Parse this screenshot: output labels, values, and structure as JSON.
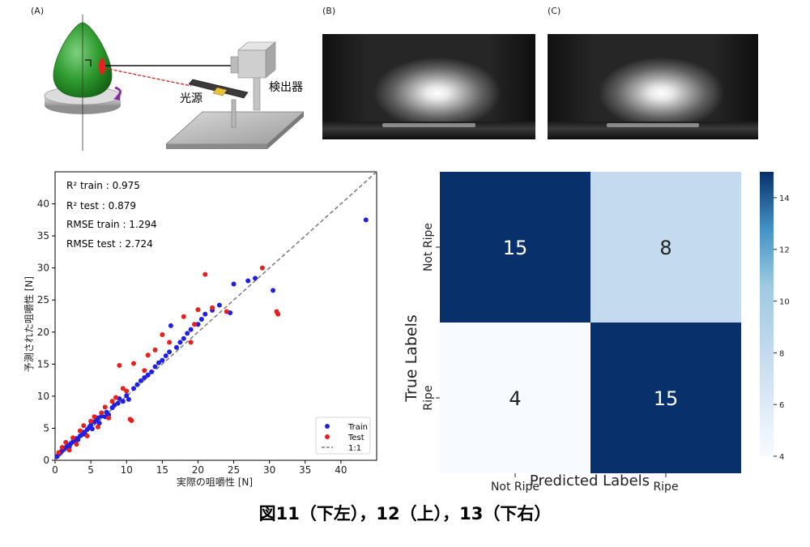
{
  "panel_labels": {
    "a": "(A)",
    "b": "(B)",
    "c": "(C)"
  },
  "apparatus": {
    "detector_label": "検出器",
    "light_source_label": "光源"
  },
  "caption": "図11（下左），12（上），13（下右）",
  "colors": {
    "train": "#1f1fe6",
    "test": "#e61f1f",
    "one_to_one": "#808080",
    "heat_dark": "#08306b",
    "heat_mid": "#9ecae1",
    "heat_light": "#f7fbff"
  },
  "chart_data": [
    {
      "type": "scatter",
      "xlabel": "実際の咀嚼性 [N]",
      "ylabel": "予測された咀嚼性 [N]",
      "xlim": [
        0,
        45
      ],
      "ylim": [
        0,
        45
      ],
      "xticks": [
        0,
        5,
        10,
        15,
        20,
        25,
        30,
        35,
        40
      ],
      "yticks": [
        0,
        5,
        10,
        15,
        20,
        25,
        30,
        35,
        40
      ],
      "grid": false,
      "legend_position": "bottom-right",
      "annotations": [
        "R² train : 0.975",
        "R² test : 0.879",
        "RMSE train : 1.294",
        "RMSE test : 2.724"
      ],
      "one_to_one_label": "1:1",
      "series": [
        {
          "name": "Train",
          "points": [
            [
              0.3,
              0.6
            ],
            [
              0.5,
              1.0
            ],
            [
              0.8,
              1.3
            ],
            [
              1.0,
              1.5
            ],
            [
              1.2,
              1.8
            ],
            [
              1.5,
              2.0
            ],
            [
              1.8,
              2.3
            ],
            [
              2.0,
              2.1
            ],
            [
              2.2,
              2.6
            ],
            [
              2.5,
              2.9
            ],
            [
              2.8,
              3.1
            ],
            [
              3.0,
              3.4
            ],
            [
              3.2,
              3.2
            ],
            [
              3.5,
              3.8
            ],
            [
              3.8,
              4.0
            ],
            [
              4.0,
              4.4
            ],
            [
              4.2,
              4.1
            ],
            [
              4.5,
              4.8
            ],
            [
              4.8,
              5.2
            ],
            [
              5.0,
              5.5
            ],
            [
              5.2,
              4.9
            ],
            [
              5.5,
              6.0
            ],
            [
              5.8,
              6.3
            ],
            [
              6.0,
              6.6
            ],
            [
              6.2,
              5.8
            ],
            [
              6.5,
              6.9
            ],
            [
              7.0,
              6.8
            ],
            [
              7.2,
              7.5
            ],
            [
              7.5,
              7.1
            ],
            [
              8.0,
              8.2
            ],
            [
              8.3,
              8.6
            ],
            [
              8.8,
              8.9
            ],
            [
              9.0,
              9.6
            ],
            [
              9.5,
              9.2
            ],
            [
              10.0,
              10.1
            ],
            [
              10.3,
              9.5
            ],
            [
              11.0,
              11.2
            ],
            [
              11.5,
              11.8
            ],
            [
              12.0,
              12.4
            ],
            [
              12.5,
              12.9
            ],
            [
              13.0,
              13.3
            ],
            [
              13.5,
              13.8
            ],
            [
              14.0,
              14.6
            ],
            [
              14.5,
              15.2
            ],
            [
              15.0,
              15.6
            ],
            [
              15.5,
              16.3
            ],
            [
              16.0,
              16.9
            ],
            [
              16.2,
              21.0
            ],
            [
              17.0,
              17.6
            ],
            [
              17.5,
              18.4
            ],
            [
              18.0,
              19.0
            ],
            [
              18.5,
              19.8
            ],
            [
              19.0,
              20.4
            ],
            [
              20.0,
              21.2
            ],
            [
              20.5,
              22.0
            ],
            [
              21.0,
              22.8
            ],
            [
              22.0,
              23.4
            ],
            [
              23.0,
              24.2
            ],
            [
              24.5,
              23.0
            ],
            [
              25.0,
              27.5
            ],
            [
              27.0,
              28.0
            ],
            [
              28.0,
              28.4
            ],
            [
              30.5,
              26.5
            ],
            [
              43.5,
              37.5
            ]
          ]
        },
        {
          "name": "Test",
          "points": [
            [
              0.5,
              1.2
            ],
            [
              1.0,
              2.0
            ],
            [
              1.5,
              2.8
            ],
            [
              2.0,
              1.6
            ],
            [
              2.5,
              3.5
            ],
            [
              3.0,
              2.5
            ],
            [
              3.5,
              4.6
            ],
            [
              4.0,
              5.4
            ],
            [
              4.5,
              3.8
            ],
            [
              5.0,
              6.1
            ],
            [
              5.5,
              6.8
            ],
            [
              6.0,
              5.2
            ],
            [
              6.5,
              7.4
            ],
            [
              7.0,
              8.3
            ],
            [
              7.5,
              6.6
            ],
            [
              8.0,
              9.2
            ],
            [
              8.5,
              9.8
            ],
            [
              9.0,
              14.8
            ],
            [
              9.5,
              11.2
            ],
            [
              10.0,
              10.8
            ],
            [
              10.5,
              6.4
            ],
            [
              10.7,
              6.2
            ],
            [
              11.0,
              15.1
            ],
            [
              12.5,
              14.0
            ],
            [
              13.0,
              16.4
            ],
            [
              14.0,
              17.2
            ],
            [
              15.0,
              19.6
            ],
            [
              16.0,
              18.4
            ],
            [
              18.0,
              22.4
            ],
            [
              19.0,
              18.4
            ],
            [
              19.5,
              21.2
            ],
            [
              20.0,
              23.5
            ],
            [
              21.0,
              29.0
            ],
            [
              22.0,
              23.8
            ],
            [
              24.0,
              23.2
            ],
            [
              29.0,
              30.0
            ],
            [
              31.0,
              23.2
            ],
            [
              31.2,
              22.8
            ]
          ]
        }
      ]
    },
    {
      "type": "heatmap",
      "xlabel": "Predicted Labels",
      "ylabel": "True Labels",
      "x_categories": [
        "Not Ripe",
        "Ripe"
      ],
      "y_categories": [
        "Not Ripe",
        "Ripe"
      ],
      "values": [
        [
          15,
          8
        ],
        [
          4,
          15
        ]
      ],
      "colorbar": {
        "min": 4,
        "max": 15,
        "ticks": [
          4,
          6,
          8,
          10,
          12,
          14
        ]
      }
    }
  ]
}
